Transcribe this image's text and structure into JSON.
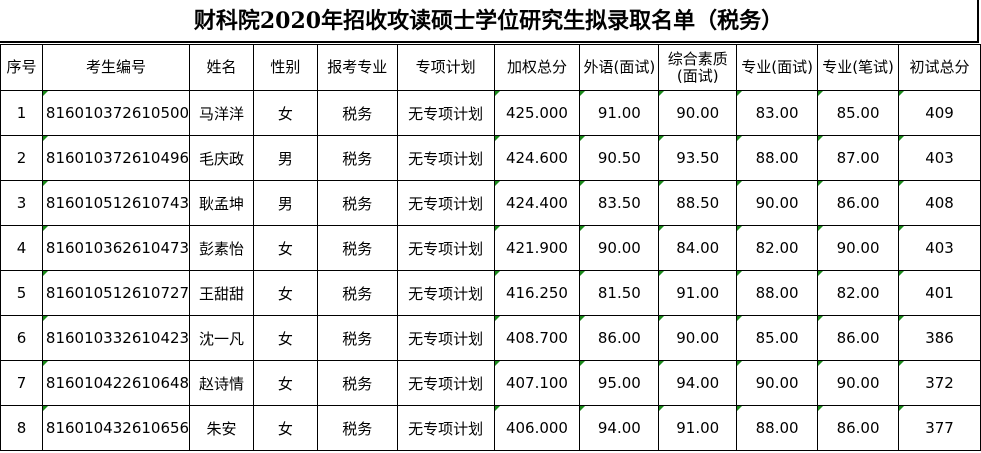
{
  "title": "财科院2020年招收攻读硕士学位研究生拟录取名单（税务）",
  "headers": [
    "序号",
    "考生编号",
    "姓名",
    "性别",
    "报考专业",
    "专项计划",
    "加权总分",
    "外语(面试)",
    "综合素质(面试)",
    "专业(面试)",
    "专业(笔试)",
    "初试总分"
  ],
  "rows": [
    [
      "1",
      "816010372610500",
      "马洋洋",
      "女",
      "税务",
      "无专项计划",
      "425.000",
      "91.00",
      "90.00",
      "83.00",
      "85.00",
      "409"
    ],
    [
      "2",
      "816010372610496",
      "毛庆政",
      "男",
      "税务",
      "无专项计划",
      "424.600",
      "90.50",
      "93.50",
      "88.00",
      "87.00",
      "403"
    ],
    [
      "3",
      "816010512610743",
      "耿孟坤",
      "男",
      "税务",
      "无专项计划",
      "424.400",
      "83.50",
      "88.50",
      "90.00",
      "86.00",
      "408"
    ],
    [
      "4",
      "816010362610473",
      "彭素怡",
      "女",
      "税务",
      "无专项计划",
      "421.900",
      "90.00",
      "84.00",
      "82.00",
      "90.00",
      "403"
    ],
    [
      "5",
      "816010512610727",
      "王甜甜",
      "女",
      "税务",
      "无专项计划",
      "416.250",
      "81.50",
      "91.00",
      "88.00",
      "82.00",
      "401"
    ],
    [
      "6",
      "816010332610423",
      "沈一凡",
      "女",
      "税务",
      "无专项计划",
      "408.700",
      "86.00",
      "90.00",
      "85.00",
      "86.00",
      "386"
    ],
    [
      "7",
      "816010422610648",
      "赵诗情",
      "女",
      "税务",
      "无专项计划",
      "407.100",
      "95.00",
      "94.00",
      "90.00",
      "90.00",
      "372"
    ],
    [
      "8",
      "816010432610656",
      "朱安",
      "女",
      "税务",
      "无专项计划",
      "406.000",
      "94.00",
      "91.00",
      "88.00",
      "86.00",
      "377"
    ]
  ]
}
